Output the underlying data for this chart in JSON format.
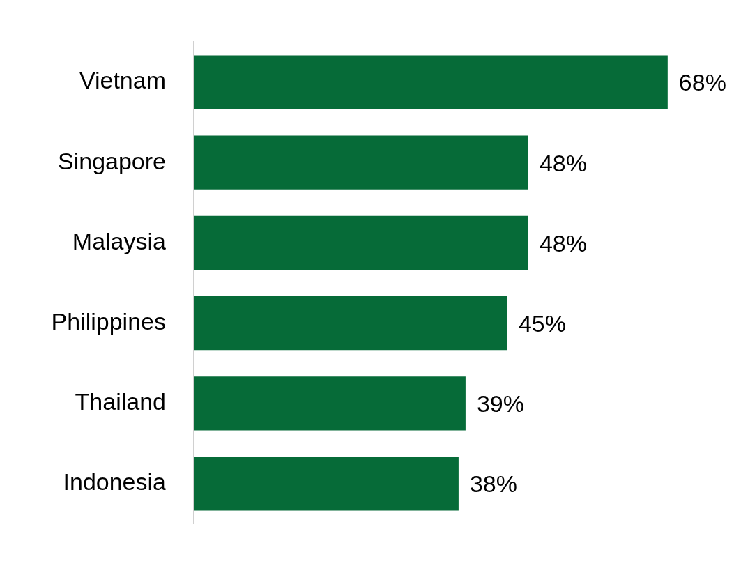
{
  "chart_data": {
    "type": "bar",
    "orientation": "horizontal",
    "categories": [
      "Vietnam",
      "Singapore",
      "Malaysia",
      "Philippines",
      "Thailand",
      "Indonesia"
    ],
    "values": [
      68,
      48,
      48,
      45,
      39,
      38
    ],
    "value_labels": [
      "68%",
      "48%",
      "48%",
      "45%",
      "39%",
      "38%"
    ],
    "color": "#066b38",
    "tick_labels": "y"
  }
}
